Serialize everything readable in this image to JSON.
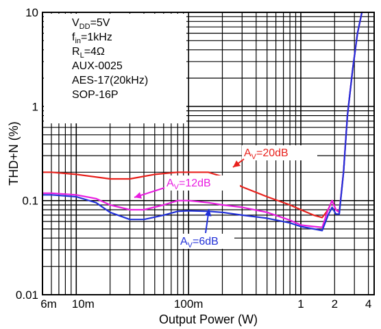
{
  "chart_data": {
    "type": "line",
    "title": "",
    "xlabel": "Output Power (W)",
    "ylabel": "THD+N (%)",
    "x_scale": "log",
    "y_scale": "log",
    "xlim": [
      0.005,
      4.5
    ],
    "ylim": [
      0.01,
      10
    ],
    "grid": true,
    "x_tick_labels": [
      {
        "value": 0.006,
        "label": "6m"
      },
      {
        "value": 0.01,
        "label": "10m"
      },
      {
        "value": 0.1,
        "label": "100m"
      },
      {
        "value": 1,
        "label": "1"
      },
      {
        "value": 2,
        "label": "2"
      },
      {
        "value": 4,
        "label": "4"
      }
    ],
    "y_tick_labels": [
      {
        "value": 0.01,
        "label": "0.01"
      },
      {
        "value": 0.1,
        "label": "0.1"
      },
      {
        "value": 1,
        "label": "1"
      },
      {
        "value": 10,
        "label": "10"
      }
    ],
    "conditions": [
      {
        "main": "V",
        "sub": "DD",
        "rest": "=5V"
      },
      {
        "main": "f",
        "sub": "in",
        "rest": "=1kHz"
      },
      {
        "main": "R",
        "sub": "L",
        "rest": "=4Ω"
      },
      {
        "main": "AUX-0025",
        "sub": "",
        "rest": ""
      },
      {
        "main": "AES-17(20kHz)",
        "sub": "",
        "rest": ""
      },
      {
        "main": "SOP-16P",
        "sub": "",
        "rest": ""
      }
    ],
    "series": [
      {
        "label_main": "A",
        "label_sub": "V",
        "label_rest": "=20dB",
        "color": "#e8211c",
        "x": [
          0.005,
          0.006,
          0.01,
          0.02,
          0.03,
          0.05,
          0.08,
          0.1,
          0.15,
          0.2,
          0.3,
          0.5,
          0.8,
          1.0,
          1.3,
          1.55,
          1.75,
          1.9,
          2.05,
          2.2,
          2.4,
          2.6,
          2.9,
          3.2,
          3.5
        ],
        "y": [
          0.2,
          0.2,
          0.19,
          0.17,
          0.17,
          0.19,
          0.2,
          0.2,
          0.2,
          0.18,
          0.14,
          0.11,
          0.09,
          0.08,
          0.07,
          0.066,
          0.08,
          0.1,
          0.08,
          0.075,
          0.2,
          0.8,
          2.5,
          6.0,
          10
        ]
      },
      {
        "label_main": "A",
        "label_sub": "V",
        "label_rest": "=12dB",
        "color": "#e81ce0",
        "x": [
          0.005,
          0.006,
          0.01,
          0.015,
          0.02,
          0.03,
          0.04,
          0.06,
          0.08,
          0.1,
          0.15,
          0.2,
          0.3,
          0.5,
          0.8,
          1.0,
          1.3,
          1.55,
          1.75,
          1.9,
          2.05,
          2.2,
          2.4,
          2.6,
          2.9,
          3.2,
          3.5
        ],
        "y": [
          0.12,
          0.12,
          0.115,
          0.105,
          0.09,
          0.08,
          0.08,
          0.09,
          0.1,
          0.1,
          0.095,
          0.09,
          0.085,
          0.075,
          0.062,
          0.055,
          0.053,
          0.052,
          0.08,
          0.1,
          0.08,
          0.075,
          0.2,
          0.8,
          2.5,
          6.0,
          10
        ]
      },
      {
        "label_main": "A",
        "label_sub": "V",
        "label_rest": "=6dB",
        "color": "#2130d8",
        "x": [
          0.005,
          0.006,
          0.01,
          0.015,
          0.02,
          0.03,
          0.04,
          0.06,
          0.08,
          0.1,
          0.15,
          0.2,
          0.3,
          0.5,
          0.8,
          1.0,
          1.3,
          1.55,
          1.75,
          1.9,
          2.05,
          2.2,
          2.4,
          2.6,
          2.9,
          3.2,
          3.5
        ],
        "y": [
          0.115,
          0.115,
          0.11,
          0.095,
          0.075,
          0.063,
          0.063,
          0.07,
          0.077,
          0.078,
          0.077,
          0.075,
          0.07,
          0.065,
          0.058,
          0.053,
          0.05,
          0.048,
          0.07,
          0.085,
          0.072,
          0.072,
          0.2,
          0.8,
          2.5,
          6.0,
          10
        ]
      }
    ]
  }
}
